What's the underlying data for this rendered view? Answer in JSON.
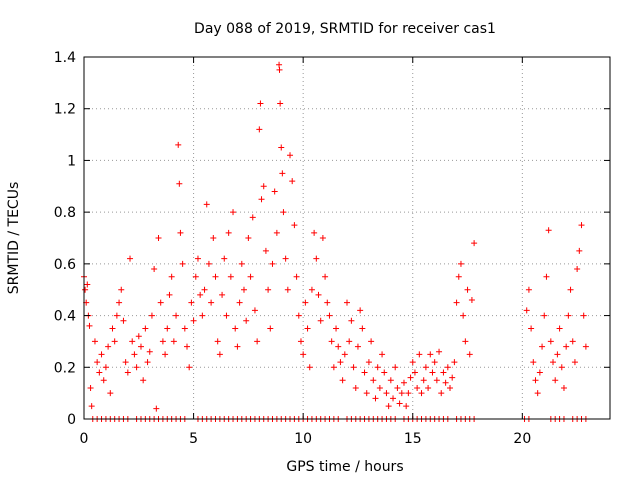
{
  "chart_data": {
    "type": "scatter",
    "title": "Day 088 of 2019, SRMTID for receiver cas1",
    "xlabel": "GPS time / hours",
    "ylabel": "SRMTID / TECUs",
    "xlim": [
      0,
      24
    ],
    "ylim": [
      0,
      1.4
    ],
    "xticks": [
      0,
      5,
      10,
      15,
      20
    ],
    "yticks": [
      0,
      0.2,
      0.4,
      0.6,
      0.8,
      1,
      1.2,
      1.4
    ],
    "ytick_labels": [
      "0",
      "0.2",
      "0.4",
      "0.6",
      "0.8",
      "1",
      "1.2",
      "1.4"
    ],
    "grid": "dotted",
    "marker": "plus",
    "marker_color": "#ff0000",
    "series": [
      {
        "name": "SRMTID",
        "points": [
          [
            0.0,
            0.55
          ],
          [
            0.05,
            0.5
          ],
          [
            0.1,
            0.45
          ],
          [
            0.15,
            0.52
          ],
          [
            0.2,
            0.4
          ],
          [
            0.25,
            0.36
          ],
          [
            0.3,
            0.12
          ],
          [
            0.35,
            0.05
          ],
          [
            0.5,
            0.3
          ],
          [
            0.6,
            0.22
          ],
          [
            0.7,
            0.18
          ],
          [
            0.8,
            0.25
          ],
          [
            0.9,
            0.15
          ],
          [
            1.0,
            0.2
          ],
          [
            1.1,
            0.28
          ],
          [
            1.2,
            0.1
          ],
          [
            1.3,
            0.35
          ],
          [
            1.4,
            0.3
          ],
          [
            1.5,
            0.4
          ],
          [
            1.6,
            0.45
          ],
          [
            1.7,
            0.5
          ],
          [
            1.8,
            0.38
          ],
          [
            1.9,
            0.22
          ],
          [
            2.0,
            0.18
          ],
          [
            2.1,
            0.62
          ],
          [
            2.2,
            0.3
          ],
          [
            2.3,
            0.25
          ],
          [
            2.4,
            0.2
          ],
          [
            2.5,
            0.32
          ],
          [
            2.6,
            0.28
          ],
          [
            2.7,
            0.15
          ],
          [
            2.8,
            0.35
          ],
          [
            2.9,
            0.22
          ],
          [
            3.0,
            0.26
          ],
          [
            3.1,
            0.4
          ],
          [
            3.2,
            0.58
          ],
          [
            3.3,
            0.04
          ],
          [
            3.4,
            0.7
          ],
          [
            3.5,
            0.45
          ],
          [
            3.6,
            0.3
          ],
          [
            3.7,
            0.25
          ],
          [
            3.8,
            0.35
          ],
          [
            3.9,
            0.48
          ],
          [
            4.0,
            0.55
          ],
          [
            4.1,
            0.3
          ],
          [
            4.2,
            0.4
          ],
          [
            4.3,
            1.06
          ],
          [
            4.35,
            0.91
          ],
          [
            4.4,
            0.72
          ],
          [
            4.5,
            0.6
          ],
          [
            4.6,
            0.35
          ],
          [
            4.7,
            0.28
          ],
          [
            4.8,
            0.2
          ],
          [
            4.9,
            0.45
          ],
          [
            5.0,
            0.38
          ],
          [
            5.1,
            0.55
          ],
          [
            5.2,
            0.62
          ],
          [
            5.3,
            0.48
          ],
          [
            5.4,
            0.4
          ],
          [
            5.5,
            0.5
          ],
          [
            5.6,
            0.83
          ],
          [
            5.7,
            0.6
          ],
          [
            5.8,
            0.45
          ],
          [
            5.9,
            0.7
          ],
          [
            6.0,
            0.55
          ],
          [
            6.1,
            0.3
          ],
          [
            6.2,
            0.25
          ],
          [
            6.3,
            0.48
          ],
          [
            6.4,
            0.62
          ],
          [
            6.5,
            0.4
          ],
          [
            6.6,
            0.72
          ],
          [
            6.7,
            0.55
          ],
          [
            6.8,
            0.8
          ],
          [
            6.9,
            0.35
          ],
          [
            7.0,
            0.28
          ],
          [
            7.1,
            0.45
          ],
          [
            7.2,
            0.6
          ],
          [
            7.3,
            0.5
          ],
          [
            7.4,
            0.38
          ],
          [
            7.5,
            0.7
          ],
          [
            7.6,
            0.55
          ],
          [
            7.7,
            0.78
          ],
          [
            7.8,
            0.42
          ],
          [
            7.9,
            0.3
          ],
          [
            8.0,
            1.12
          ],
          [
            8.05,
            1.22
          ],
          [
            8.1,
            0.85
          ],
          [
            8.2,
            0.9
          ],
          [
            8.3,
            0.65
          ],
          [
            8.4,
            0.5
          ],
          [
            8.5,
            0.35
          ],
          [
            8.6,
            0.6
          ],
          [
            8.7,
            0.88
          ],
          [
            8.8,
            0.72
          ],
          [
            8.9,
            1.37
          ],
          [
            8.92,
            1.35
          ],
          [
            8.95,
            1.22
          ],
          [
            9.0,
            1.05
          ],
          [
            9.05,
            0.95
          ],
          [
            9.1,
            0.8
          ],
          [
            9.2,
            0.62
          ],
          [
            9.3,
            0.5
          ],
          [
            9.4,
            1.02
          ],
          [
            9.5,
            0.92
          ],
          [
            9.6,
            0.75
          ],
          [
            9.7,
            0.55
          ],
          [
            9.8,
            0.4
          ],
          [
            9.9,
            0.3
          ],
          [
            10.0,
            0.25
          ],
          [
            10.1,
            0.45
          ],
          [
            10.2,
            0.35
          ],
          [
            10.3,
            0.2
          ],
          [
            10.4,
            0.5
          ],
          [
            10.5,
            0.72
          ],
          [
            10.6,
            0.62
          ],
          [
            10.7,
            0.48
          ],
          [
            10.8,
            0.38
          ],
          [
            10.9,
            0.7
          ],
          [
            11.0,
            0.55
          ],
          [
            11.1,
            0.45
          ],
          [
            11.2,
            0.4
          ],
          [
            11.3,
            0.3
          ],
          [
            11.4,
            0.2
          ],
          [
            11.5,
            0.35
          ],
          [
            11.6,
            0.28
          ],
          [
            11.7,
            0.22
          ],
          [
            11.8,
            0.15
          ],
          [
            11.9,
            0.25
          ],
          [
            12.0,
            0.45
          ],
          [
            12.1,
            0.3
          ],
          [
            12.2,
            0.38
          ],
          [
            12.3,
            0.2
          ],
          [
            12.4,
            0.12
          ],
          [
            12.5,
            0.28
          ],
          [
            12.6,
            0.42
          ],
          [
            12.7,
            0.35
          ],
          [
            12.8,
            0.18
          ],
          [
            12.9,
            0.1
          ],
          [
            13.0,
            0.22
          ],
          [
            13.1,
            0.3
          ],
          [
            13.2,
            0.15
          ],
          [
            13.3,
            0.08
          ],
          [
            13.4,
            0.2
          ],
          [
            13.5,
            0.12
          ],
          [
            13.6,
            0.25
          ],
          [
            13.7,
            0.18
          ],
          [
            13.8,
            0.1
          ],
          [
            13.9,
            0.05
          ],
          [
            14.0,
            0.15
          ],
          [
            14.1,
            0.08
          ],
          [
            14.2,
            0.2
          ],
          [
            14.3,
            0.12
          ],
          [
            14.4,
            0.06
          ],
          [
            14.5,
            0.1
          ],
          [
            14.6,
            0.14
          ],
          [
            14.7,
            0.05
          ],
          [
            14.8,
            0.1
          ],
          [
            14.9,
            0.16
          ],
          [
            15.0,
            0.22
          ],
          [
            15.1,
            0.18
          ],
          [
            15.2,
            0.12
          ],
          [
            15.3,
            0.25
          ],
          [
            15.4,
            0.1
          ],
          [
            15.5,
            0.15
          ],
          [
            15.6,
            0.2
          ],
          [
            15.7,
            0.12
          ],
          [
            15.8,
            0.25
          ],
          [
            15.9,
            0.18
          ],
          [
            16.0,
            0.22
          ],
          [
            16.1,
            0.15
          ],
          [
            16.2,
            0.26
          ],
          [
            16.3,
            0.1
          ],
          [
            16.4,
            0.18
          ],
          [
            16.5,
            0.14
          ],
          [
            16.6,
            0.2
          ],
          [
            16.7,
            0.12
          ],
          [
            16.8,
            0.16
          ],
          [
            16.9,
            0.22
          ],
          [
            17.0,
            0.45
          ],
          [
            17.1,
            0.55
          ],
          [
            17.2,
            0.6
          ],
          [
            17.3,
            0.4
          ],
          [
            17.4,
            0.3
          ],
          [
            17.5,
            0.5
          ],
          [
            17.6,
            0.25
          ],
          [
            17.7,
            0.46
          ],
          [
            17.8,
            0.68
          ],
          [
            20.2,
            0.42
          ],
          [
            20.3,
            0.5
          ],
          [
            20.4,
            0.35
          ],
          [
            20.5,
            0.22
          ],
          [
            20.6,
            0.15
          ],
          [
            20.7,
            0.1
          ],
          [
            20.8,
            0.18
          ],
          [
            20.9,
            0.28
          ],
          [
            21.0,
            0.4
          ],
          [
            21.1,
            0.55
          ],
          [
            21.2,
            0.73
          ],
          [
            21.3,
            0.3
          ],
          [
            21.4,
            0.22
          ],
          [
            21.5,
            0.15
          ],
          [
            21.6,
            0.25
          ],
          [
            21.7,
            0.35
          ],
          [
            21.8,
            0.2
          ],
          [
            21.9,
            0.12
          ],
          [
            22.0,
            0.28
          ],
          [
            22.1,
            0.4
          ],
          [
            22.2,
            0.5
          ],
          [
            22.3,
            0.3
          ],
          [
            22.4,
            0.22
          ],
          [
            22.5,
            0.58
          ],
          [
            22.6,
            0.65
          ],
          [
            22.7,
            0.75
          ],
          [
            22.8,
            0.4
          ],
          [
            22.9,
            0.28
          ]
        ],
        "zero_runs": [
          [
            0.4,
            2.0
          ],
          [
            2.4,
            4.6
          ],
          [
            5.2,
            11.6
          ],
          [
            12.0,
            14.2
          ],
          [
            14.6,
            16.6
          ],
          [
            17.0,
            17.8
          ],
          [
            20.1,
            20.3
          ],
          [
            21.3,
            21.9
          ],
          [
            22.3,
            22.9
          ]
        ]
      }
    ]
  }
}
